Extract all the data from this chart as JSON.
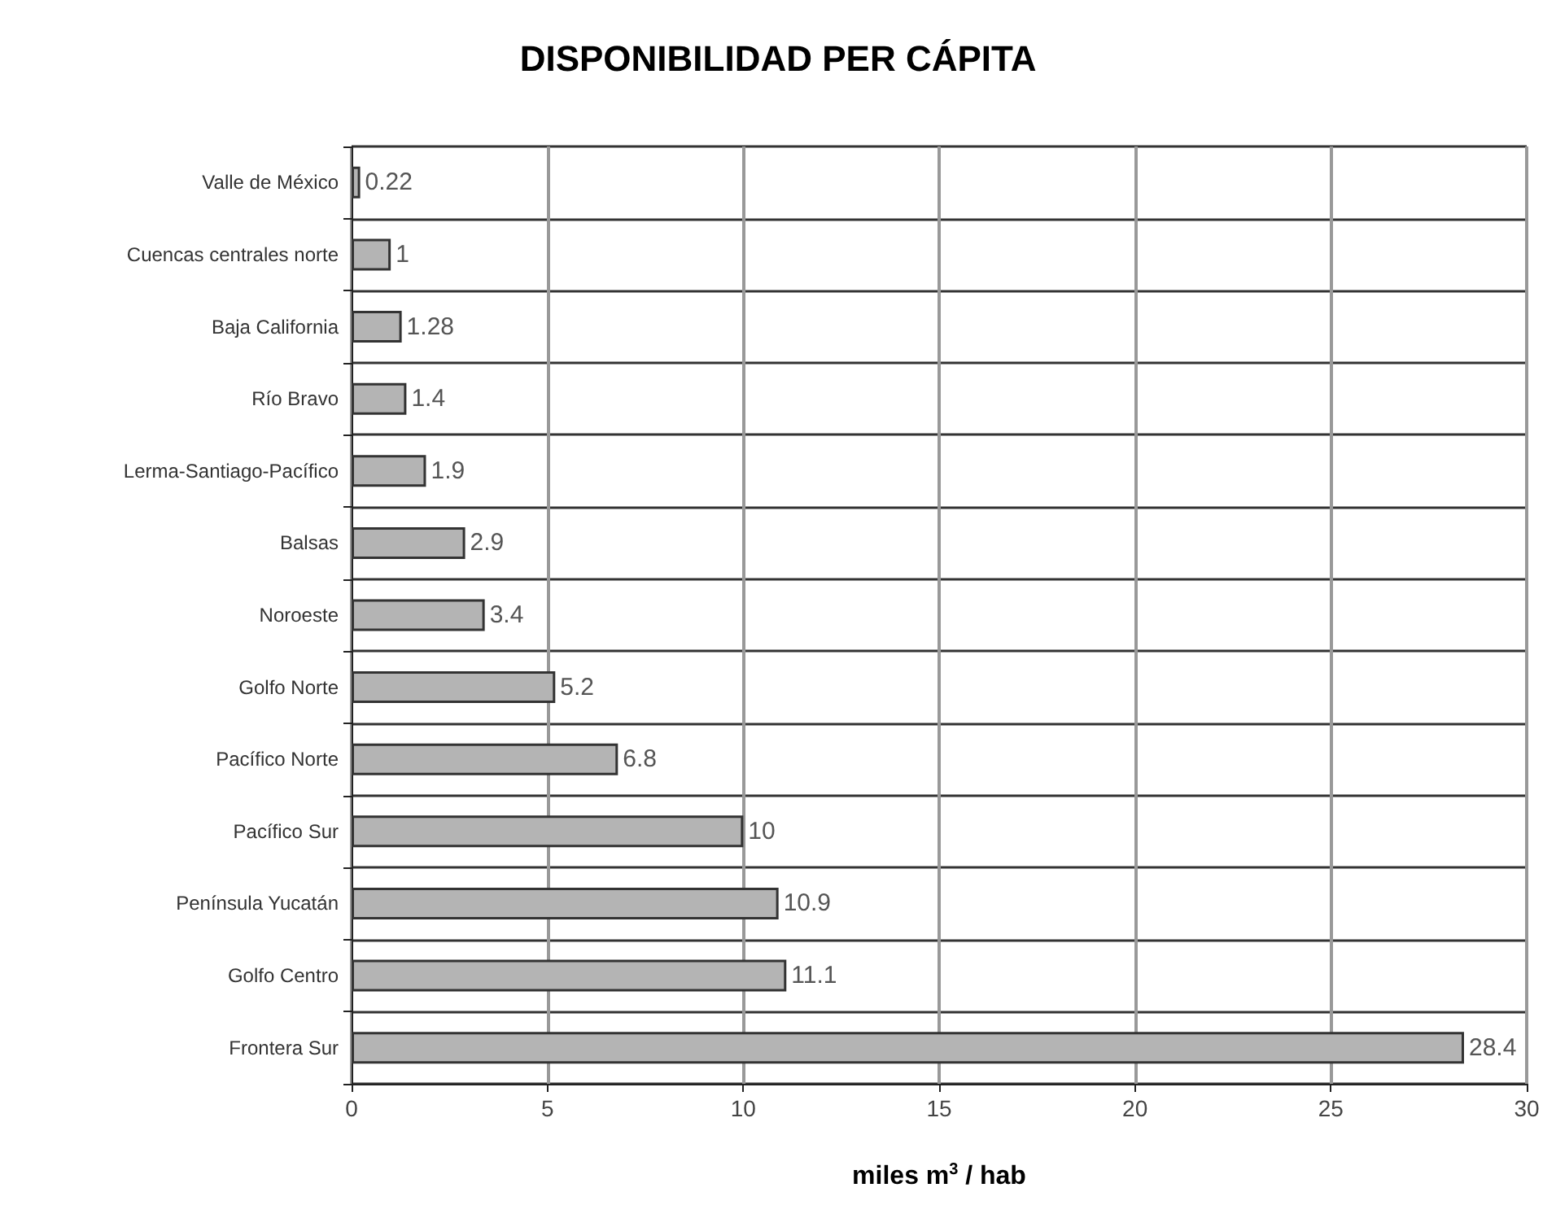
{
  "chart_data": {
    "type": "bar",
    "orientation": "horizontal",
    "title": "DISPONIBILIDAD PER CÁPITA",
    "xlabel": "miles m$^{3}$ / hab",
    "categories": [
      "Valle de México",
      "Cuencas centrales norte",
      "Baja California",
      "Río Bravo",
      "Lerma-Santiago-Pacífico",
      "Balsas",
      "Noroeste",
      "Golfo Norte",
      "Pacífico Norte",
      "Pacífico Sur",
      "Península Yucatán",
      "Golfo Centro",
      "Frontera Sur"
    ],
    "values": [
      0.22,
      1,
      1.28,
      1.4,
      1.9,
      2.9,
      3.4,
      5.2,
      6.8,
      10,
      10.9,
      11.1,
      28.4
    ],
    "color": "#b4b4b4",
    "xlim": [
      0,
      30
    ],
    "xticks": [
      0,
      5,
      10,
      15,
      20,
      25,
      30
    ],
    "grid": true,
    "data_labels": true
  }
}
